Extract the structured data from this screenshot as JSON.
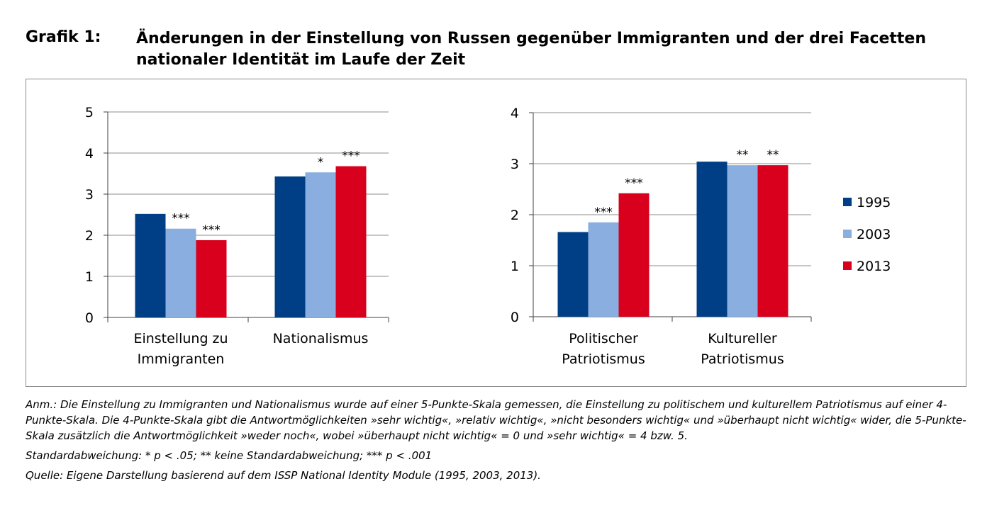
{
  "header": {
    "label": "Grafik 1:",
    "title": "Änderungen in der Einstellung von Russen gegenüber Immigranten und der drei Facetten nationaler Identität im Laufe der Zeit"
  },
  "chart_data": [
    {
      "type": "bar",
      "categories": [
        [
          "Einstellung zu",
          "Immigranten"
        ],
        [
          "Nationalismus"
        ]
      ],
      "series": [
        {
          "name": "1995",
          "values": [
            2.52,
            3.43
          ]
        },
        {
          "name": "2003",
          "values": [
            2.16,
            3.53
          ]
        },
        {
          "name": "2013",
          "values": [
            1.88,
            3.68
          ]
        }
      ],
      "significance": [
        [
          "",
          "***",
          "***"
        ],
        [
          "",
          "*",
          "***"
        ]
      ],
      "yticks": [
        "0",
        "1",
        "2",
        "3",
        "4",
        "5"
      ],
      "ylim": [
        0,
        5
      ],
      "grid": true
    },
    {
      "type": "bar",
      "categories": [
        [
          "Politischer",
          "Patriotismus"
        ],
        [
          "Kultureller",
          "Patriotismus"
        ]
      ],
      "series": [
        {
          "name": "1995",
          "values": [
            1.66,
            3.04
          ]
        },
        {
          "name": "2003",
          "values": [
            1.85,
            2.97
          ]
        },
        {
          "name": "2013",
          "values": [
            2.42,
            2.97
          ]
        }
      ],
      "significance": [
        [
          "",
          "***",
          "***"
        ],
        [
          "",
          "**",
          "**"
        ]
      ],
      "yticks": [
        "0",
        "1",
        "2",
        "3",
        "4"
      ],
      "ylim": [
        0,
        4
      ],
      "grid": true,
      "legend": {
        "placement": "right",
        "entries": [
          {
            "label": "1995",
            "color": "#003f86"
          },
          {
            "label": "2003",
            "color": "#8aaee0"
          },
          {
            "label": "2013",
            "color": "#d8001c"
          }
        ]
      }
    }
  ],
  "colors": {
    "1995": "#003f86",
    "2003": "#8aaee0",
    "2013": "#d8001c",
    "grid": "#8c8c8c"
  },
  "notes": {
    "anm": "Anm.: Die Einstellung zu Immigranten und Nationalismus wurde auf einer 5-Punkte-Skala gemessen, die Einstellung zu politischem und kulturellem Patriotismus auf einer 4-Punkte-Skala. Die 4-Punkte-Skala gibt die Antwortmöglichkeiten »sehr wichtig«, »relativ wichtig«, »nicht besonders wichtig« und »überhaupt nicht wichtig« wider, die 5-Punkte-Skala zusätzlich die Antwortmöglichkeit »weder noch«,  wobei »überhaupt nicht wichtig« = 0 und »sehr wichtig« = 4 bzw. 5.",
    "std": "Standardabweichung: * p < .05; ** keine Standardabweichung; *** p < .001",
    "source": "Quelle: Eigene Darstellung basierend auf dem ISSP National Identity Module (1995, 2003, 2013)."
  }
}
